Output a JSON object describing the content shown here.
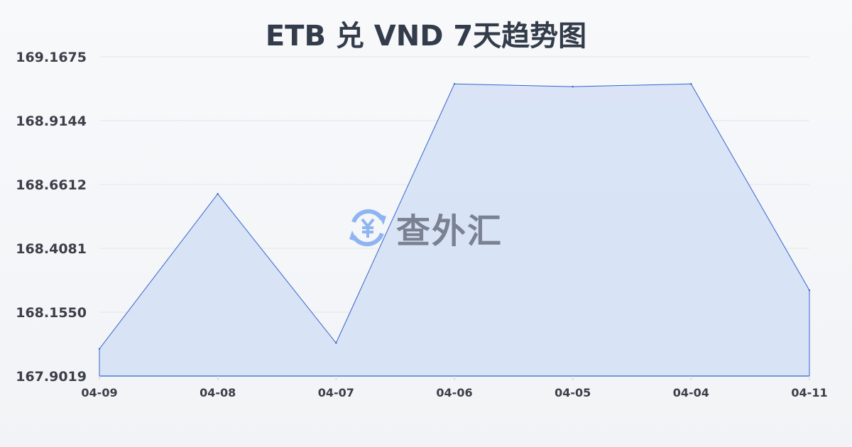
{
  "chart_data": {
    "type": "area",
    "title": "ETB 兑 VND 7天趋势图",
    "categories": [
      "04-09",
      "04-08",
      "04-07",
      "04-06",
      "04-05",
      "04-04",
      "04-11"
    ],
    "values": [
      168.0096,
      168.624,
      168.033,
      169.06,
      169.049,
      169.06,
      168.242
    ],
    "yticks": [
      "169.1675",
      "168.9144",
      "168.6612",
      "168.4081",
      "168.1550",
      "167.9019"
    ],
    "ylim": [
      167.9019,
      169.1675
    ],
    "xlabel": "",
    "ylabel": "",
    "grid": true,
    "colors": {
      "line": "#3366cc",
      "fill": "#d6e1f5",
      "grid": "#e3e6ea"
    }
  },
  "watermark": {
    "text": "查外汇",
    "icon": "yen-exchange-icon",
    "color": "#8fb4f2"
  }
}
